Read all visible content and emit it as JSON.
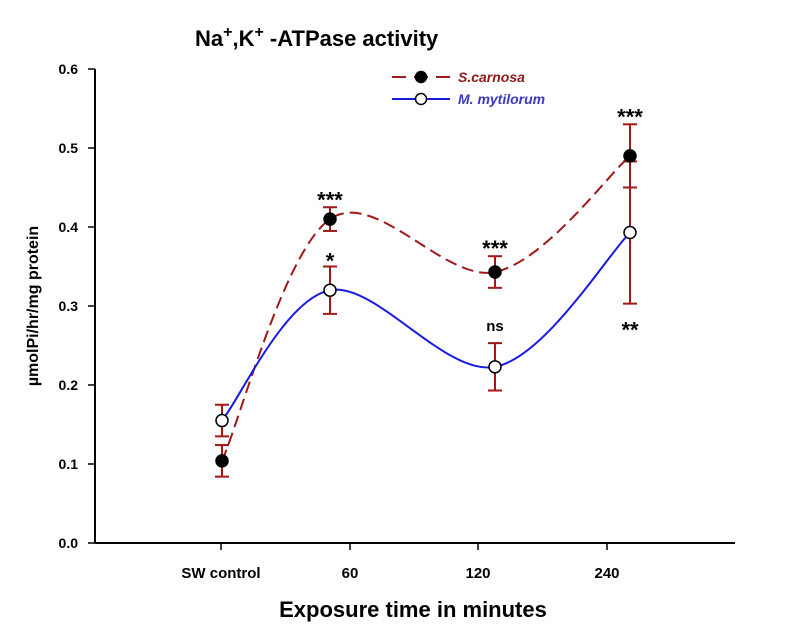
{
  "chart_data": {
    "type": "line",
    "title_parts": [
      "Na",
      "+",
      ",K",
      "+",
      " -ATPase activity"
    ],
    "title": "Na+,K+ -ATPase activity",
    "xlabel": "Exposure time in minutes",
    "ylabel": "µmolPi/hr/mg protein",
    "categories": [
      "SW control",
      "60",
      "120",
      "240"
    ],
    "ylim": [
      0,
      0.6
    ],
    "yticks": [
      "0.0",
      "0.1",
      "0.2",
      "0.3",
      "0.4",
      "0.5",
      "0.6"
    ],
    "legend_position": "top-center",
    "series": [
      {
        "name": "S.carnosa",
        "color": "#a01818",
        "style": "dashed",
        "marker": "filled",
        "values": [
          0.104,
          0.41,
          0.343,
          0.49
        ],
        "errors": [
          0.02,
          0.015,
          0.02,
          0.04
        ],
        "annotations": [
          "",
          "***",
          "***",
          "***"
        ]
      },
      {
        "name": "M. mytilorum",
        "color": "#1a1ae0",
        "style": "solid",
        "marker": "open",
        "values": [
          0.155,
          0.32,
          0.223,
          0.393
        ],
        "errors": [
          0.02,
          0.03,
          0.03,
          0.09
        ],
        "annotations": [
          "",
          "*",
          "ns",
          "**"
        ]
      }
    ]
  }
}
